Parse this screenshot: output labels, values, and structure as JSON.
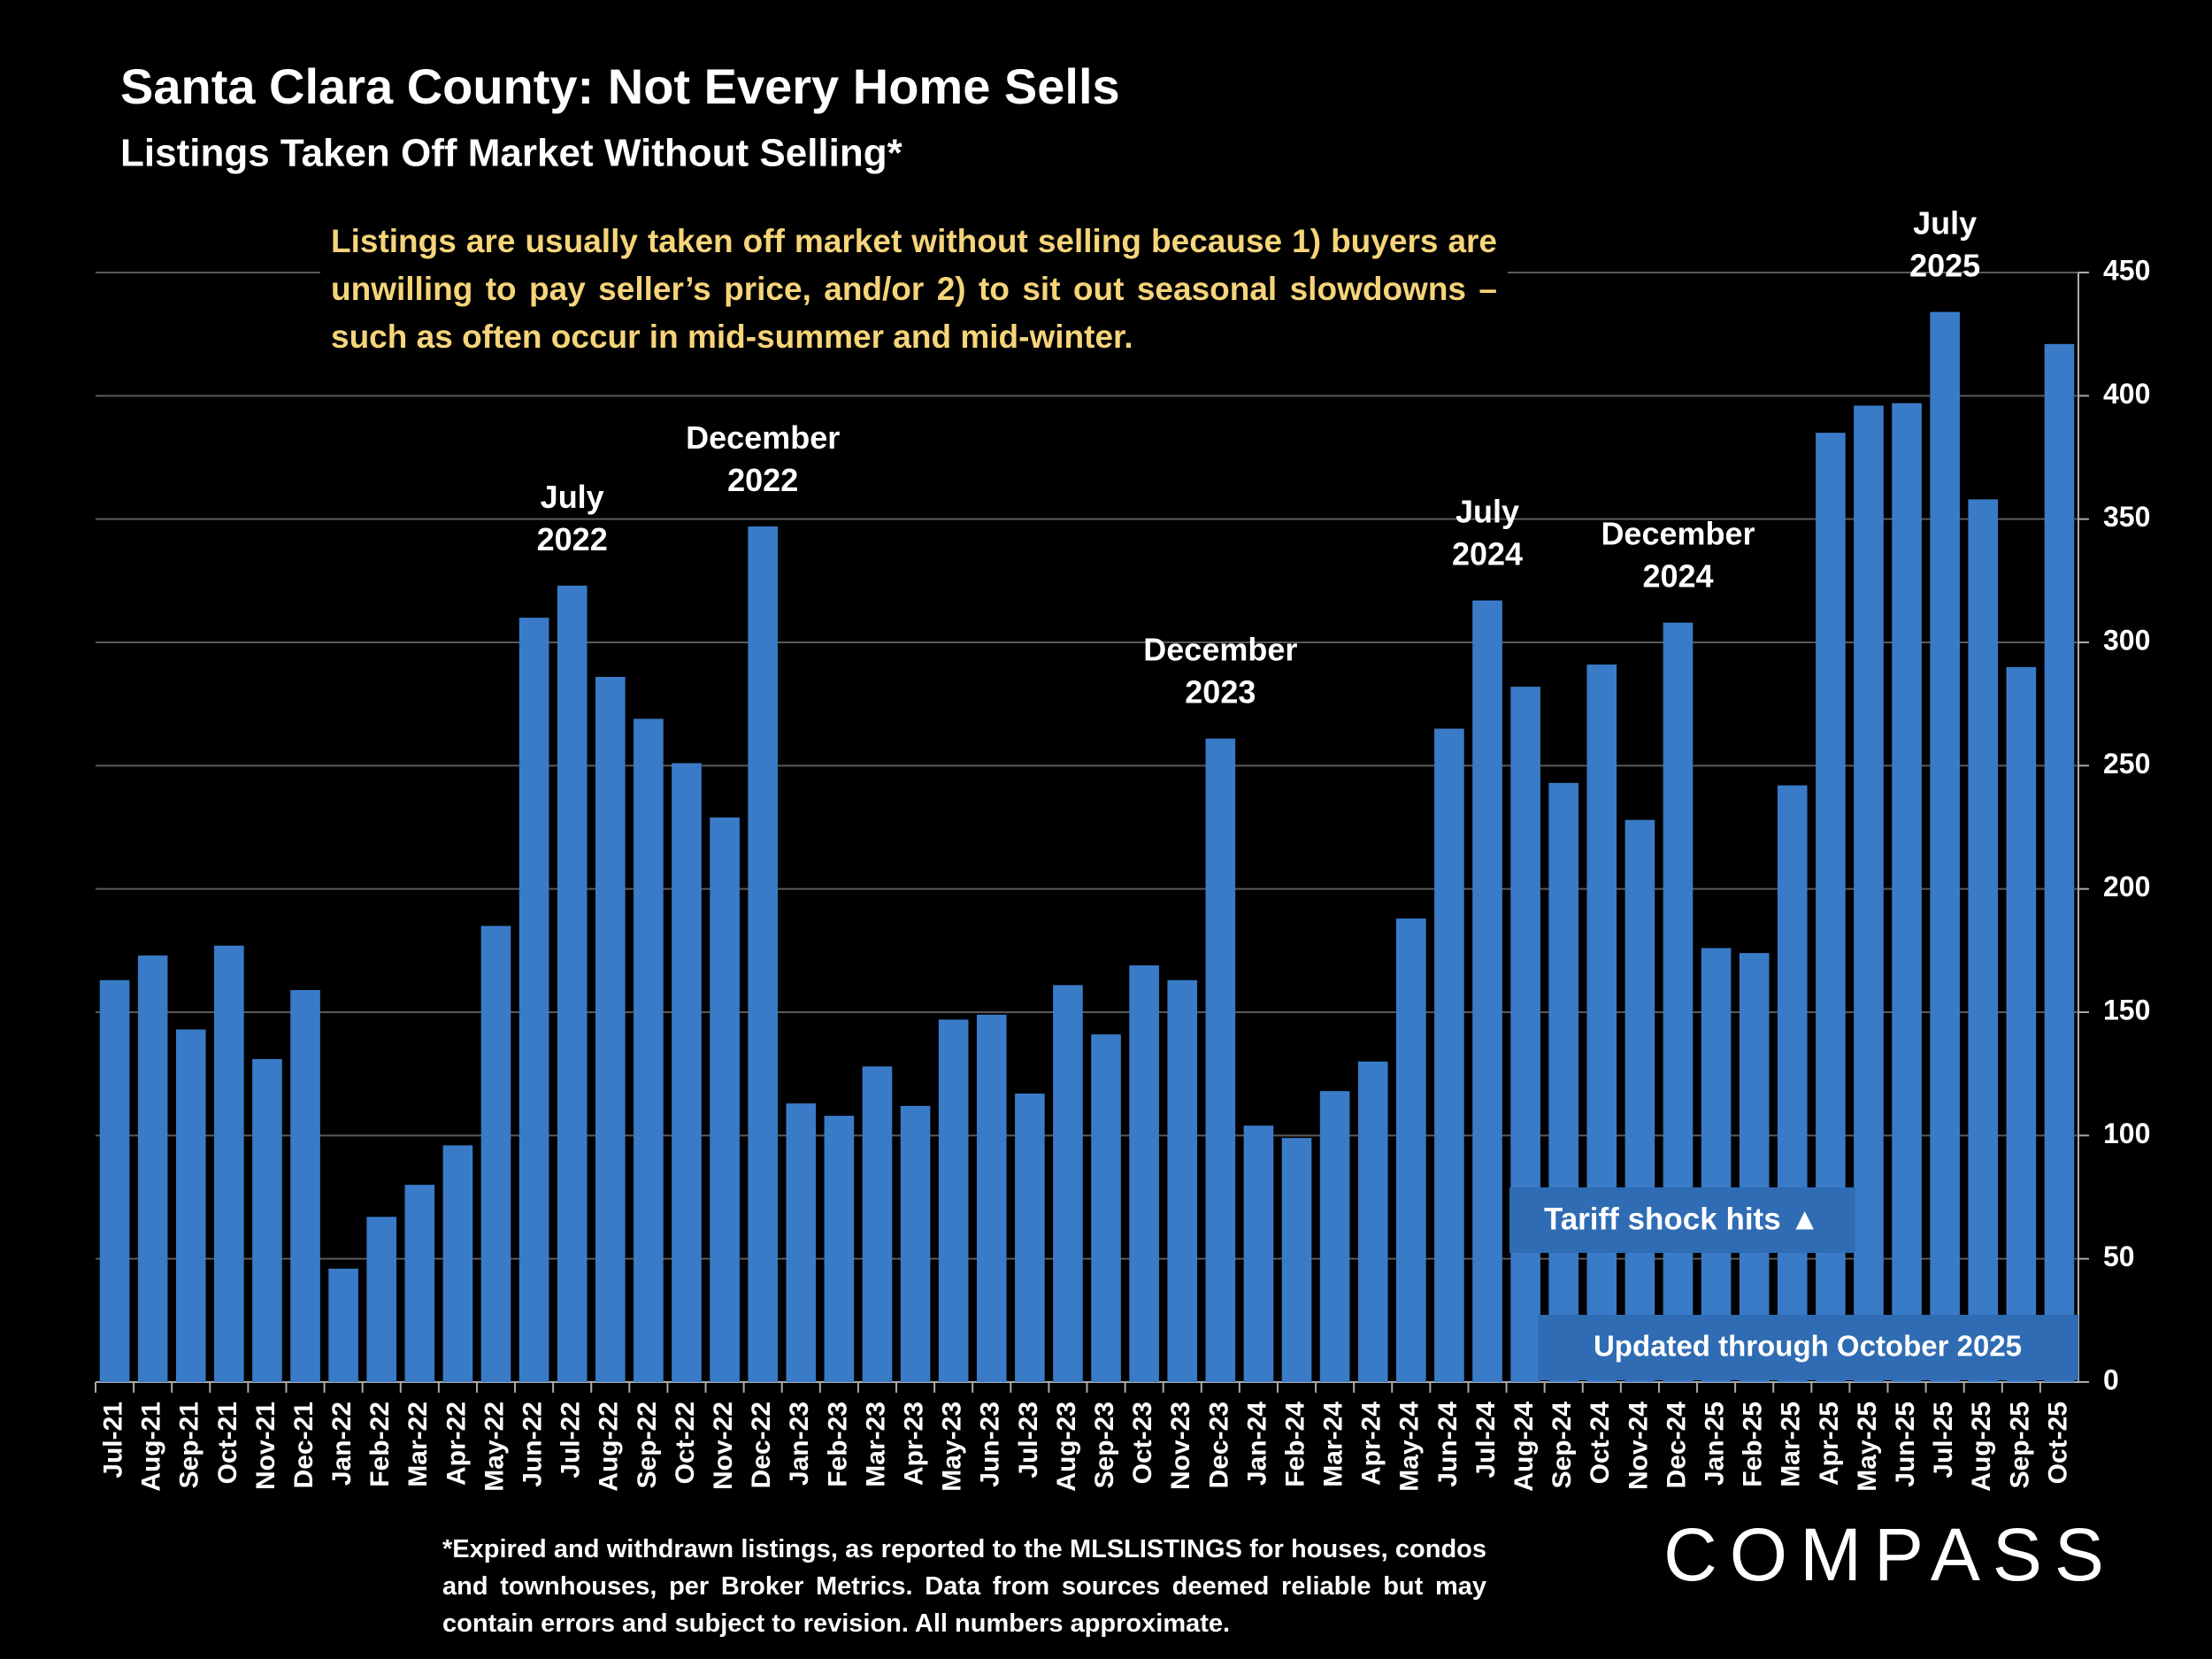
{
  "chart_data": {
    "type": "bar",
    "title": "Santa Clara County: Not Every Home Sells",
    "subtitle": "Listings Taken Off Market Without Selling*",
    "note": "Listings are usually taken off market without selling because 1) buyers are unwilling to pay seller’s price, and/or 2) to sit out seasonal slowdowns – such as often occur in mid-summer and mid-winter.",
    "categories": [
      "Jul-21",
      "Aug-21",
      "Sep-21",
      "Oct-21",
      "Nov-21",
      "Dec-21",
      "Jan-22",
      "Feb-22",
      "Mar-22",
      "Apr-22",
      "May-22",
      "Jun-22",
      "Jul-22",
      "Aug-22",
      "Sep-22",
      "Oct-22",
      "Nov-22",
      "Dec-22",
      "Jan-23",
      "Feb-23",
      "Mar-23",
      "Apr-23",
      "May-23",
      "Jun-23",
      "Jul-23",
      "Aug-23",
      "Sep-23",
      "Oct-23",
      "Nov-23",
      "Dec-23",
      "Jan-24",
      "Feb-24",
      "Mar-24",
      "Apr-24",
      "May-24",
      "Jun-24",
      "Jul-24",
      "Aug-24",
      "Sep-24",
      "Oct-24",
      "Nov-24",
      "Dec-24",
      "Jan-25",
      "Feb-25",
      "Mar-25",
      "Apr-25",
      "May-25",
      "Jun-25",
      "Jul-25",
      "Aug-25",
      "Sep-25",
      "Oct-25"
    ],
    "values": [
      163,
      173,
      143,
      177,
      131,
      159,
      46,
      67,
      80,
      96,
      185,
      310,
      323,
      286,
      269,
      251,
      229,
      347,
      113,
      108,
      128,
      112,
      147,
      149,
      117,
      161,
      141,
      169,
      163,
      261,
      104,
      99,
      118,
      130,
      188,
      265,
      317,
      282,
      243,
      291,
      228,
      308,
      176,
      174,
      242,
      385,
      396,
      397,
      434,
      358,
      290,
      421
    ],
    "color": "#3a7bc8",
    "ylim": [
      0,
      450
    ],
    "yticks": [
      0,
      50,
      100,
      150,
      200,
      250,
      300,
      350,
      400,
      450
    ],
    "grid": true,
    "annotations": [
      [
        "July",
        "2022"
      ],
      [
        "December",
        "2022"
      ],
      [
        "December",
        "2023"
      ],
      [
        "July",
        "2024"
      ],
      [
        "December",
        "2024"
      ],
      [
        "July",
        "2025"
      ]
    ],
    "callouts": [
      "Tariff shock hits ▲",
      "Updated through October 2025"
    ],
    "footnote": "*Expired and withdrawn listings, as reported to the MLSLISTINGS for houses, condos and townhouses, per Broker Metrics. Data from sources deemed reliable but may contain errors and subject to revision. All numbers approximate.",
    "logo": "COMPASS"
  }
}
